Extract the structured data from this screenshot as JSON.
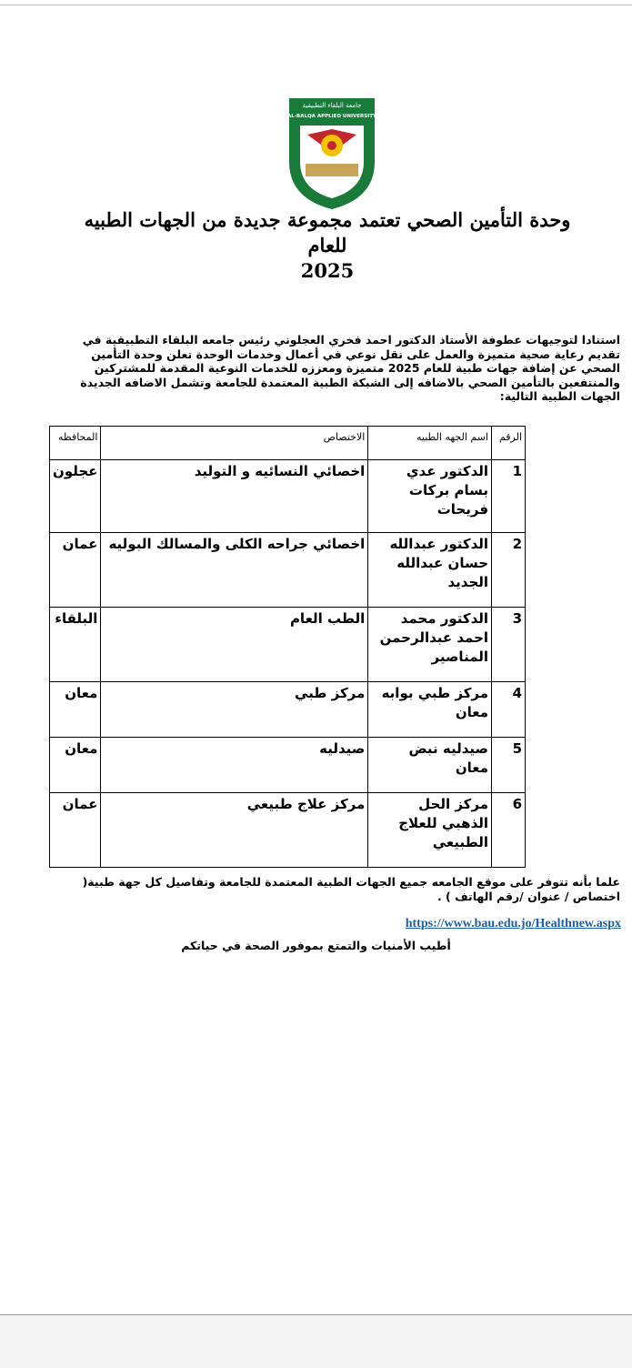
{
  "logo": {
    "arabic_name": "جامعة البلقاء التطبيقية",
    "english_name": "AL-BALQA APPLIED UNIVERSITY",
    "colors": {
      "green": "#1a7a3a",
      "red": "#c0282d",
      "yellow": "#f2c200"
    }
  },
  "title": {
    "line1": "وحدة التأمين الصحي تعتمد مجموعة جديدة من الجهات الطبيه",
    "line2": "للعام",
    "line3": "2025"
  },
  "intro": "استنادا لتوجيهات عطوفة الأستاذ الدكتور احمد فخري العجلوني رئيس جامعه البلقاء التطبيقية في تقديم رعاية صحية متميزة والعمل على نقل نوعي في أعمال وخدمات الوحدة  تعلن وحدة التأمين الصحي عن إضافة  جهات طبية للعام 2025 متميزة ومعززه للخدمات النوعية المقدمة للمشتركين والمنتفعين بالتأمين الصحي بالاضافه إلى الشبكة الطبية المعتمدة للجامعة وتشمل الاضافه الجديدة الجهات الطبية التالية:",
  "table": {
    "headers": [
      "الرقم",
      "اسم الجهه الطبيه",
      "الاختصاص",
      "المحافظه"
    ],
    "rows": [
      [
        "1",
        "الدكتور عدي بسام بركات فريحات",
        "اخصائي النسائيه و التوليد",
        "عجلون"
      ],
      [
        "2",
        "الدكتور عبدالله حسان عبدالله الجديد",
        "اخصائي جراحه الكلى والمسالك البوليه",
        "عمان"
      ],
      [
        "3",
        "الدكتور محمد احمد عبدالرحمن المناصير",
        "الطب العام",
        "البلقاء"
      ],
      [
        "4",
        "مركز طبي بوابه معان",
        "مركز طبي",
        "معان"
      ],
      [
        "5",
        "صيدليه نبض معان",
        "صيدليه",
        "معان"
      ],
      [
        "6",
        "مركز الحل الذهبي للعلاج الطبيعي",
        "مركز علاج طبيعي",
        "عمان"
      ]
    ]
  },
  "note": "علما بأنه تتوفر على  موقع الجامعه جميع الجهات الطبية المعتمدة للجامعة وتفاصيل كل جهة طبية( اختصاص / عنوان /رقم الهاتف ) .",
  "link": "https://www.bau.edu.jo/Healthnew.aspx",
  "closing": "أطيب الأمنيات والتمتع بموفور الصحة في حياتكم"
}
